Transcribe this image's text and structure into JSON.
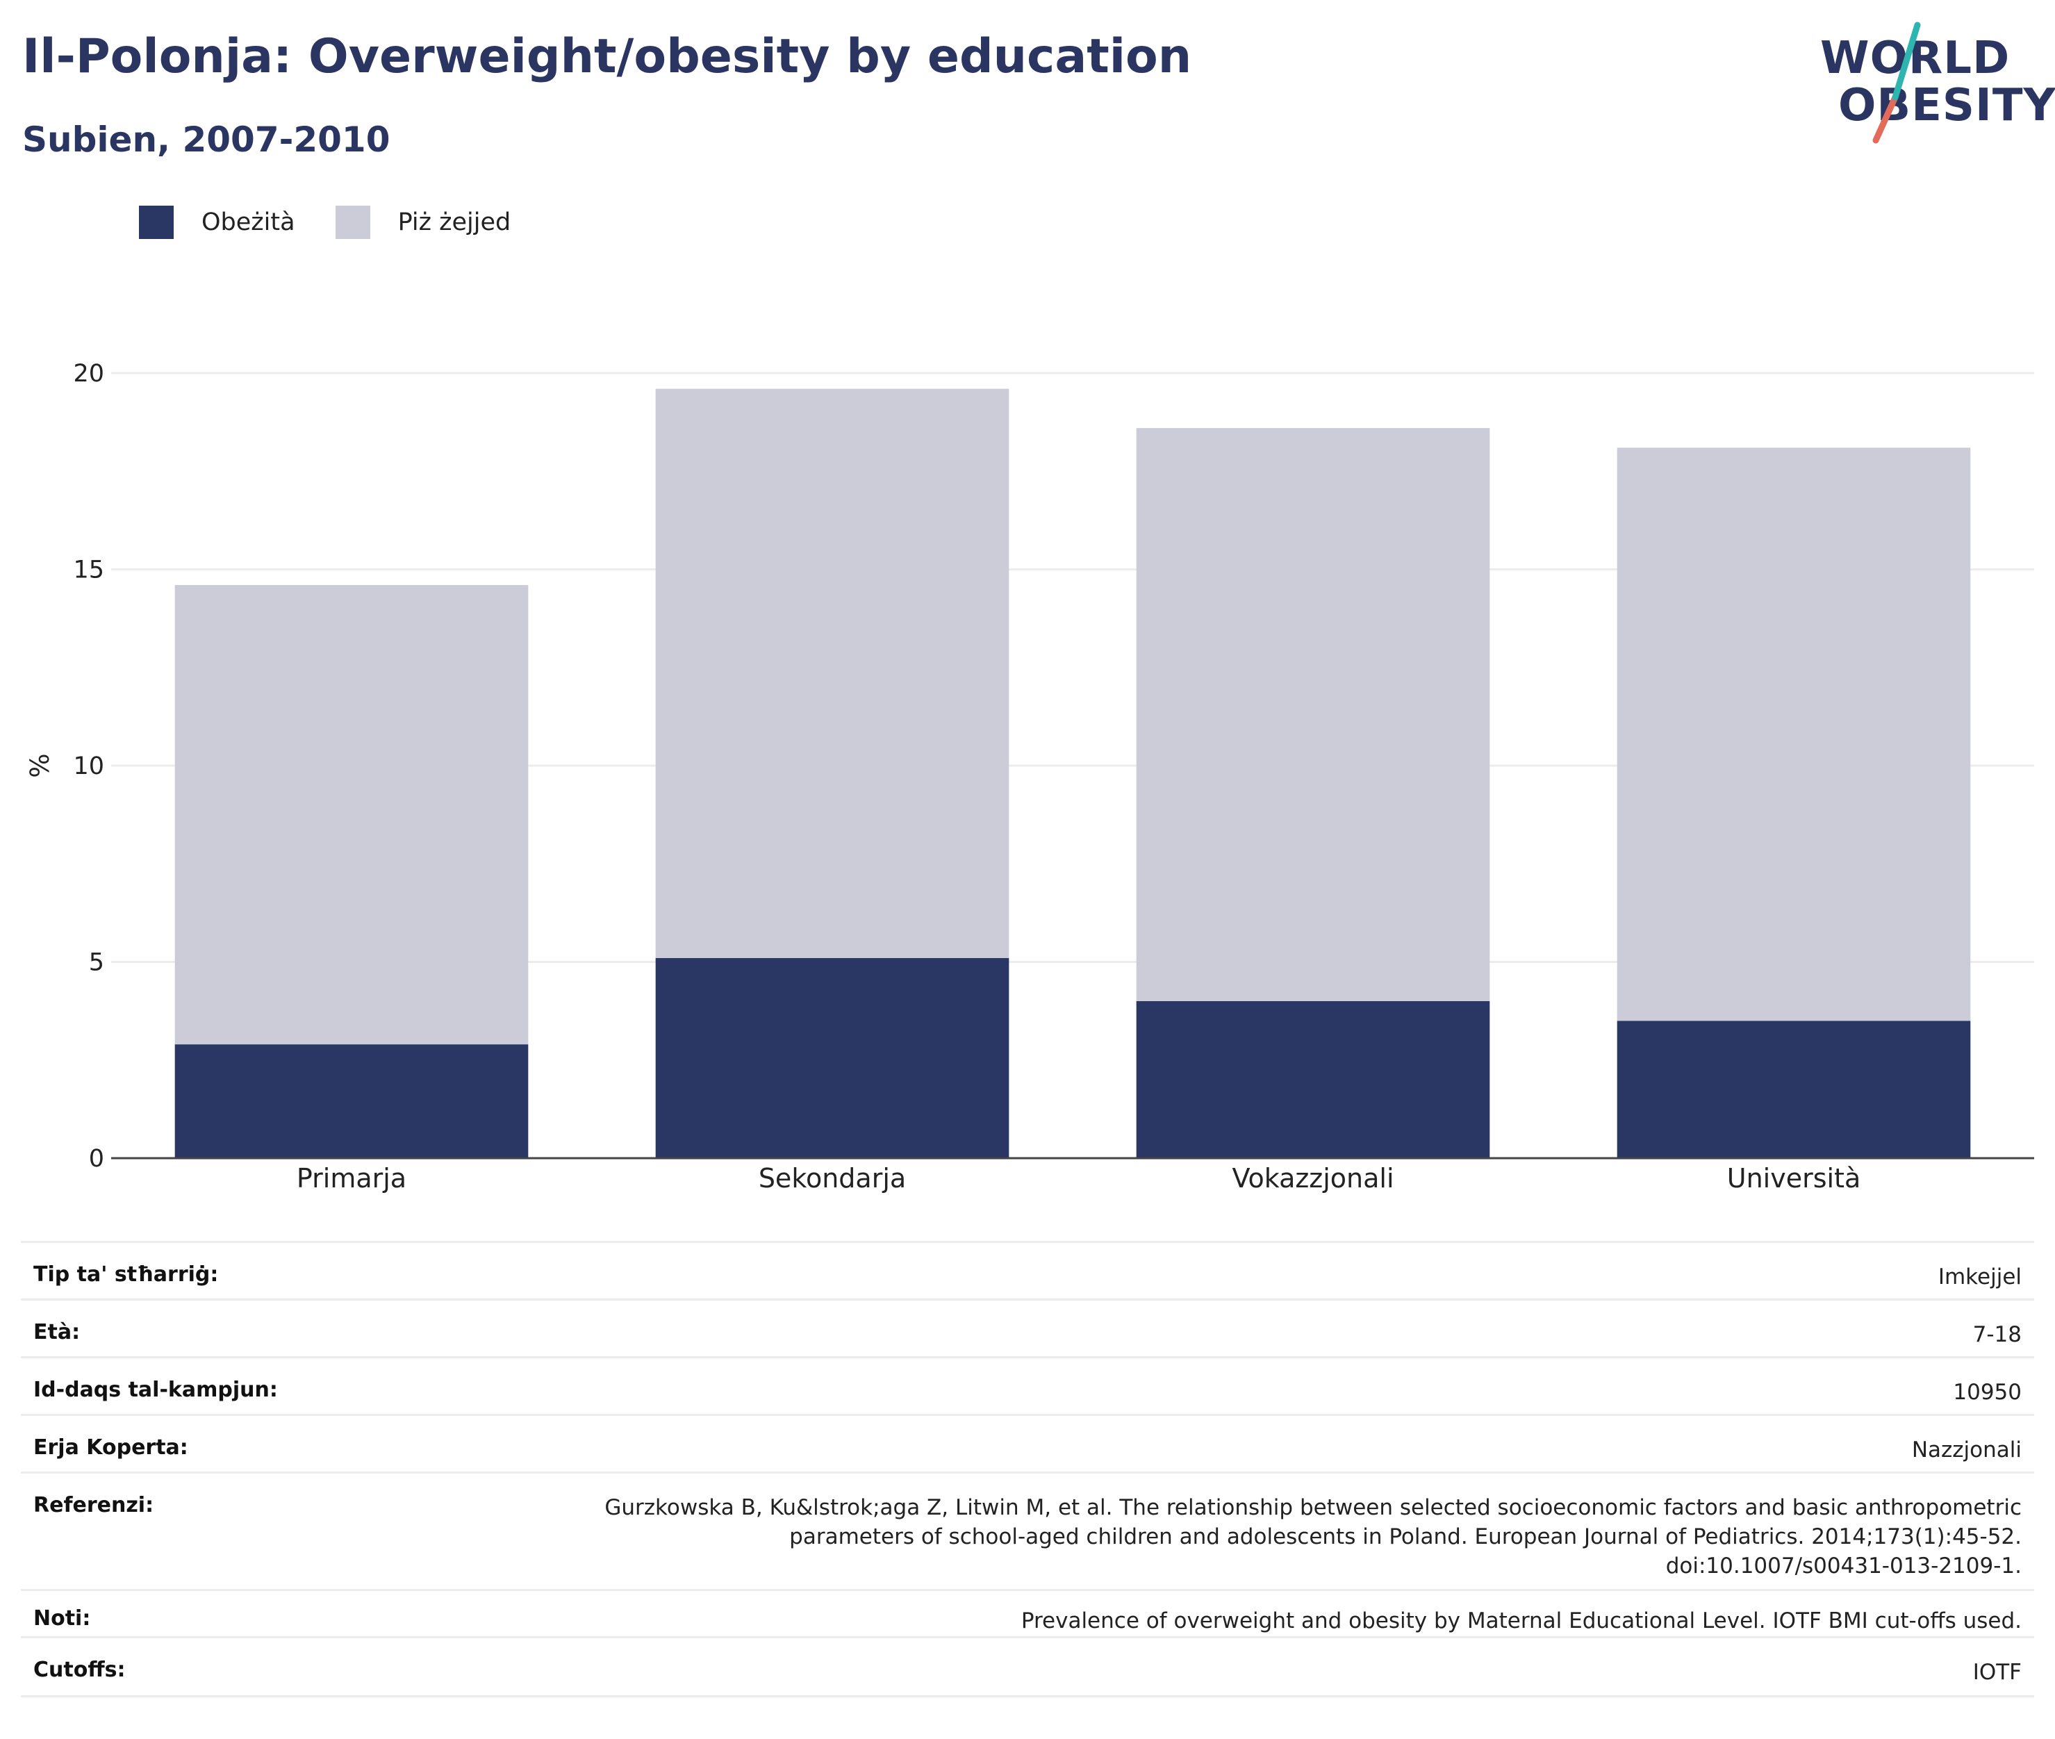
{
  "header": {
    "title": "Il-Polonja: Overweight/obesity by education",
    "subtitle": "Subien, 2007-2010"
  },
  "logo": {
    "line1": "WORLD",
    "line2": "OBESITY"
  },
  "colors": {
    "obesity": "#2a3663",
    "overweight": "#cbccd8",
    "text_dark": "#2a3561",
    "logo_teal": "#2fb5b0",
    "logo_coral": "#e26b5a"
  },
  "chart_data": {
    "type": "bar",
    "stacked": true,
    "categories": [
      "Primarja",
      "Sekondarja",
      "Vokazzjonali",
      "Università"
    ],
    "series": [
      {
        "name": "Obeżità",
        "values": [
          2.9,
          5.1,
          4.0,
          3.5
        ]
      },
      {
        "name": "Piż żejjed",
        "values": [
          11.7,
          14.5,
          14.6,
          14.6
        ]
      }
    ],
    "totals": [
      14.6,
      19.6,
      18.6,
      18.1
    ],
    "ylabel": "%",
    "yticks": [
      0,
      5,
      10,
      15,
      20
    ],
    "ylim": [
      0,
      20.5
    ],
    "grid": true,
    "legend_position": "top-left"
  },
  "info": [
    {
      "key": "Tip ta' stħarriġ:",
      "value": "Imkejjel"
    },
    {
      "key": "Età:",
      "value": "7-18"
    },
    {
      "key": "Id-daqs tal-kampjun:",
      "value": "10950"
    },
    {
      "key": "Erja Koperta:",
      "value": "Nazzjonali"
    },
    {
      "key": "Referenzi:",
      "value_lines": [
        "Gurzkowska B, Ku&lstrok;aga Z, Litwin M, et al. The relationship between selected socioeconomic factors and basic anthropometric",
        "parameters of school-aged children and adolescents in Poland. European Journal of Pediatrics. 2014;173(1):45-52.",
        "doi:10.1007/s00431-013-2109-1."
      ]
    },
    {
      "key": "Noti:",
      "value": "Prevalence of overweight and obesity by Maternal Educational Level. IOTF BMI cut-offs used."
    },
    {
      "key": "Cutoffs:",
      "value": "IOTF"
    }
  ]
}
